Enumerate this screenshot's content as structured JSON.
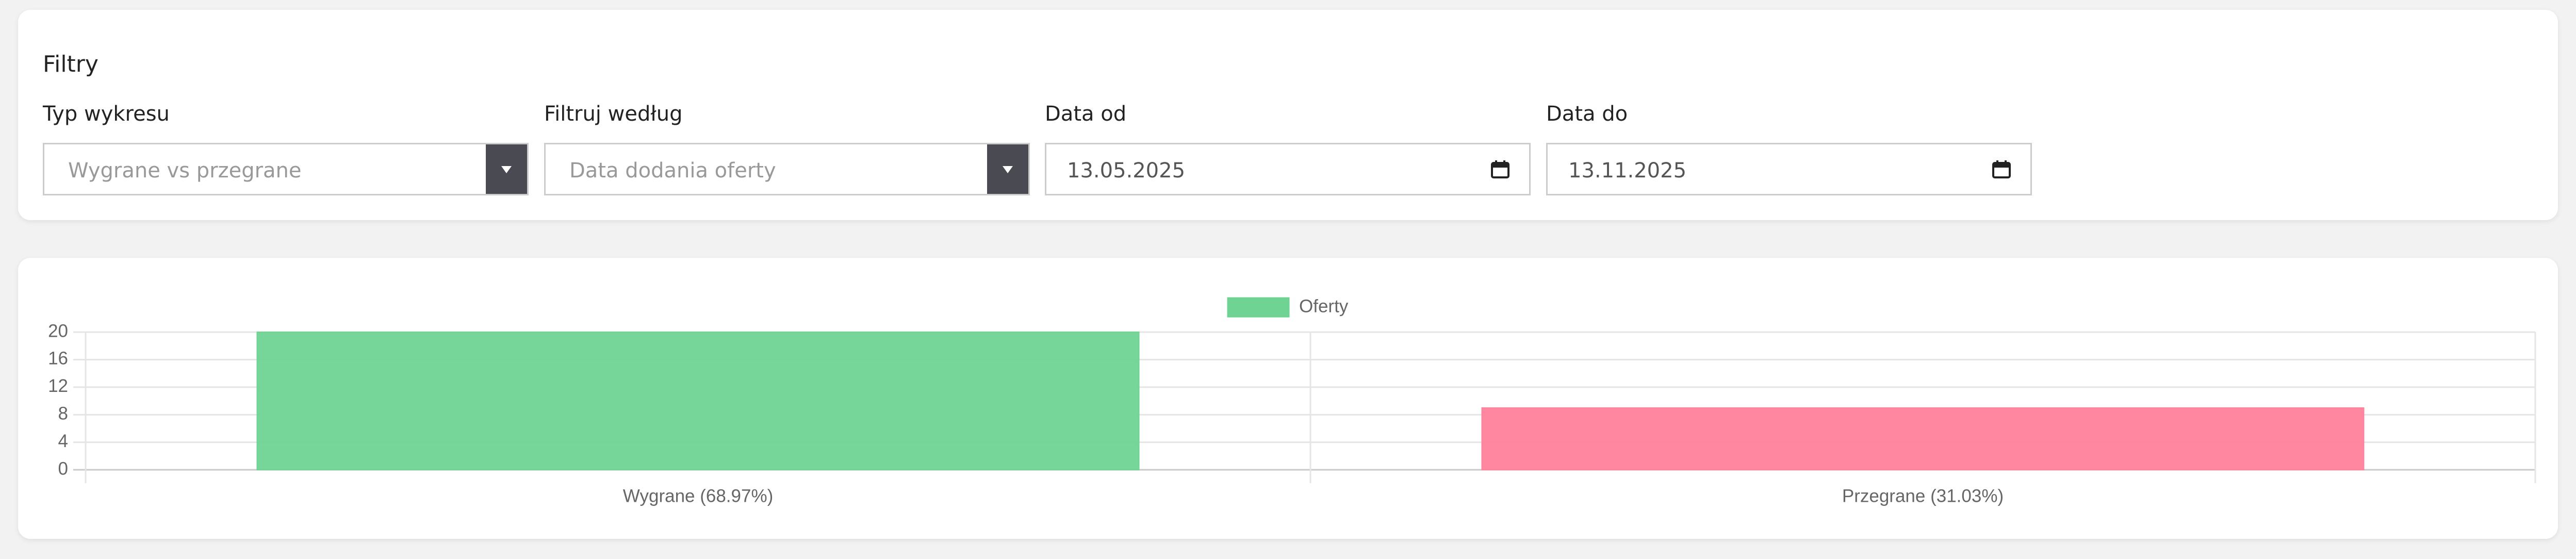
{
  "filters": {
    "title": "Filtry",
    "fields": [
      {
        "label": "Typ wykresu",
        "value": "Wygrane vs przegrane"
      },
      {
        "label": "Filtruj według",
        "value": "Data dodania oferty"
      },
      {
        "label": "Data od",
        "value": "13.05.2025"
      },
      {
        "label": "Data do",
        "value": "13.11.2025"
      }
    ]
  },
  "chart_data": {
    "type": "bar",
    "categories": [
      "Wygrane (68.97%)",
      "Przegrane (31.03%)"
    ],
    "series": [
      {
        "name": "Oferty",
        "color": "#6fd493",
        "colors": [
          "#6fd493",
          "#ff829b"
        ],
        "values": [
          20,
          9
        ]
      }
    ],
    "ylim": [
      0,
      20
    ],
    "yticks": [
      0,
      4,
      8,
      12,
      16,
      20
    ],
    "grid": true
  }
}
